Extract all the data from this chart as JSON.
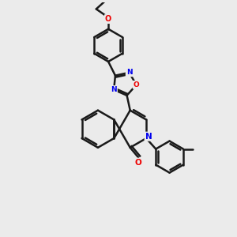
{
  "bg_color": "#ebebeb",
  "bond_color": "#1a1a1a",
  "N_color": "#0000ee",
  "O_color": "#ee0000",
  "lw": 1.8,
  "figsize": [
    3.0,
    3.0
  ],
  "dpi": 100,
  "xlim": [
    0,
    10
  ],
  "ylim": [
    0,
    10
  ]
}
